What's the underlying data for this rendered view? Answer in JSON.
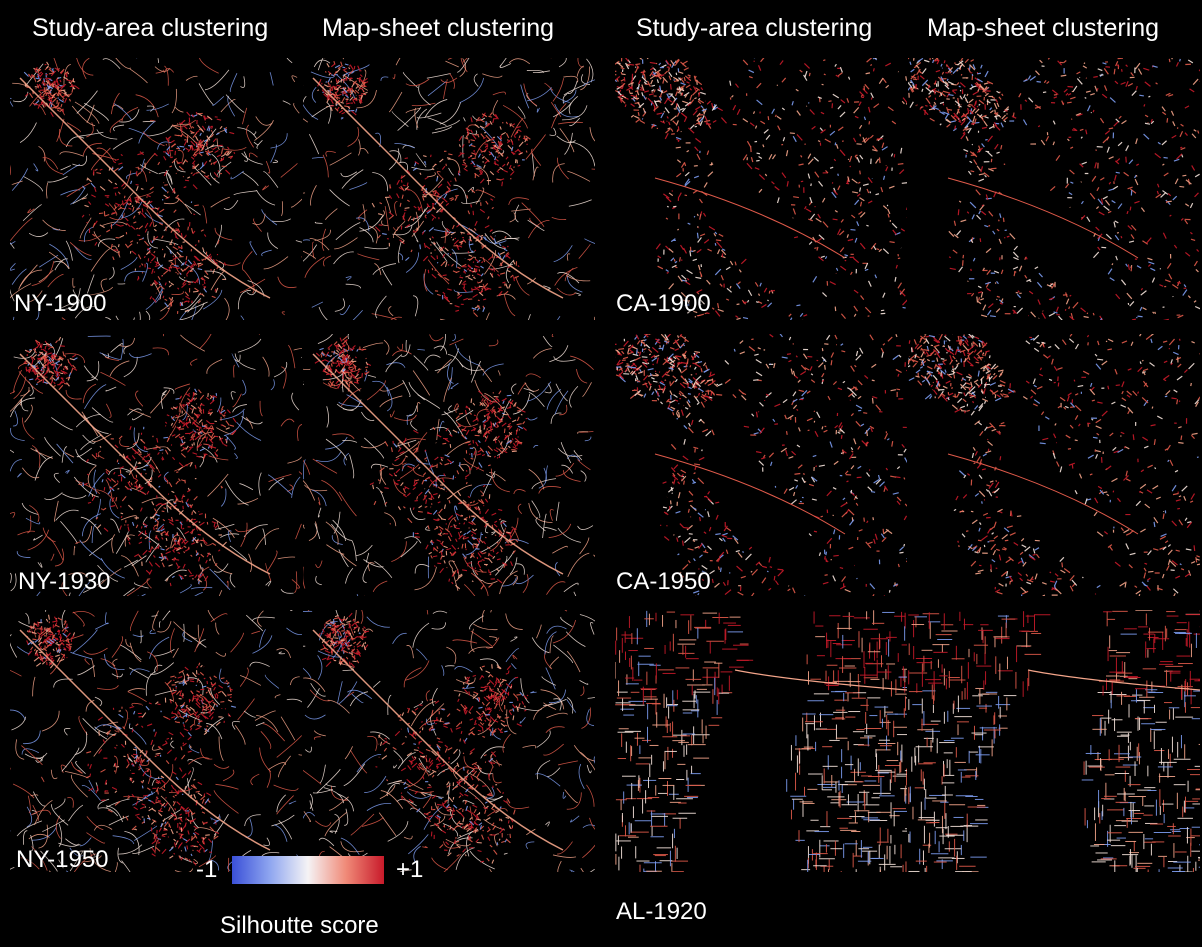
{
  "headers": {
    "left_study": "Study-area clustering",
    "left_sheet": "Map-sheet clustering",
    "right_study": "Study-area clustering",
    "right_sheet": "Map-sheet clustering"
  },
  "rows": [
    {
      "left_label": "NY-1900",
      "right_label": "CA-1900"
    },
    {
      "left_label": "NY-1930",
      "right_label": "CA-1950"
    },
    {
      "left_label": "NY-1950",
      "right_label": "AL-1920"
    }
  ],
  "legend": {
    "min_label": "-1",
    "max_label": "+1",
    "title": "Silhoutte score",
    "colors": [
      "#3a50d8",
      "#f5f3f5",
      "#c81a2a"
    ]
  },
  "palette": {
    "road_light": "#f4a58a",
    "road_mid": "#e05a4a",
    "road_dark": "#c81a2a",
    "road_blue": "#7c9cf0",
    "road_white": "#f6e4dc"
  }
}
